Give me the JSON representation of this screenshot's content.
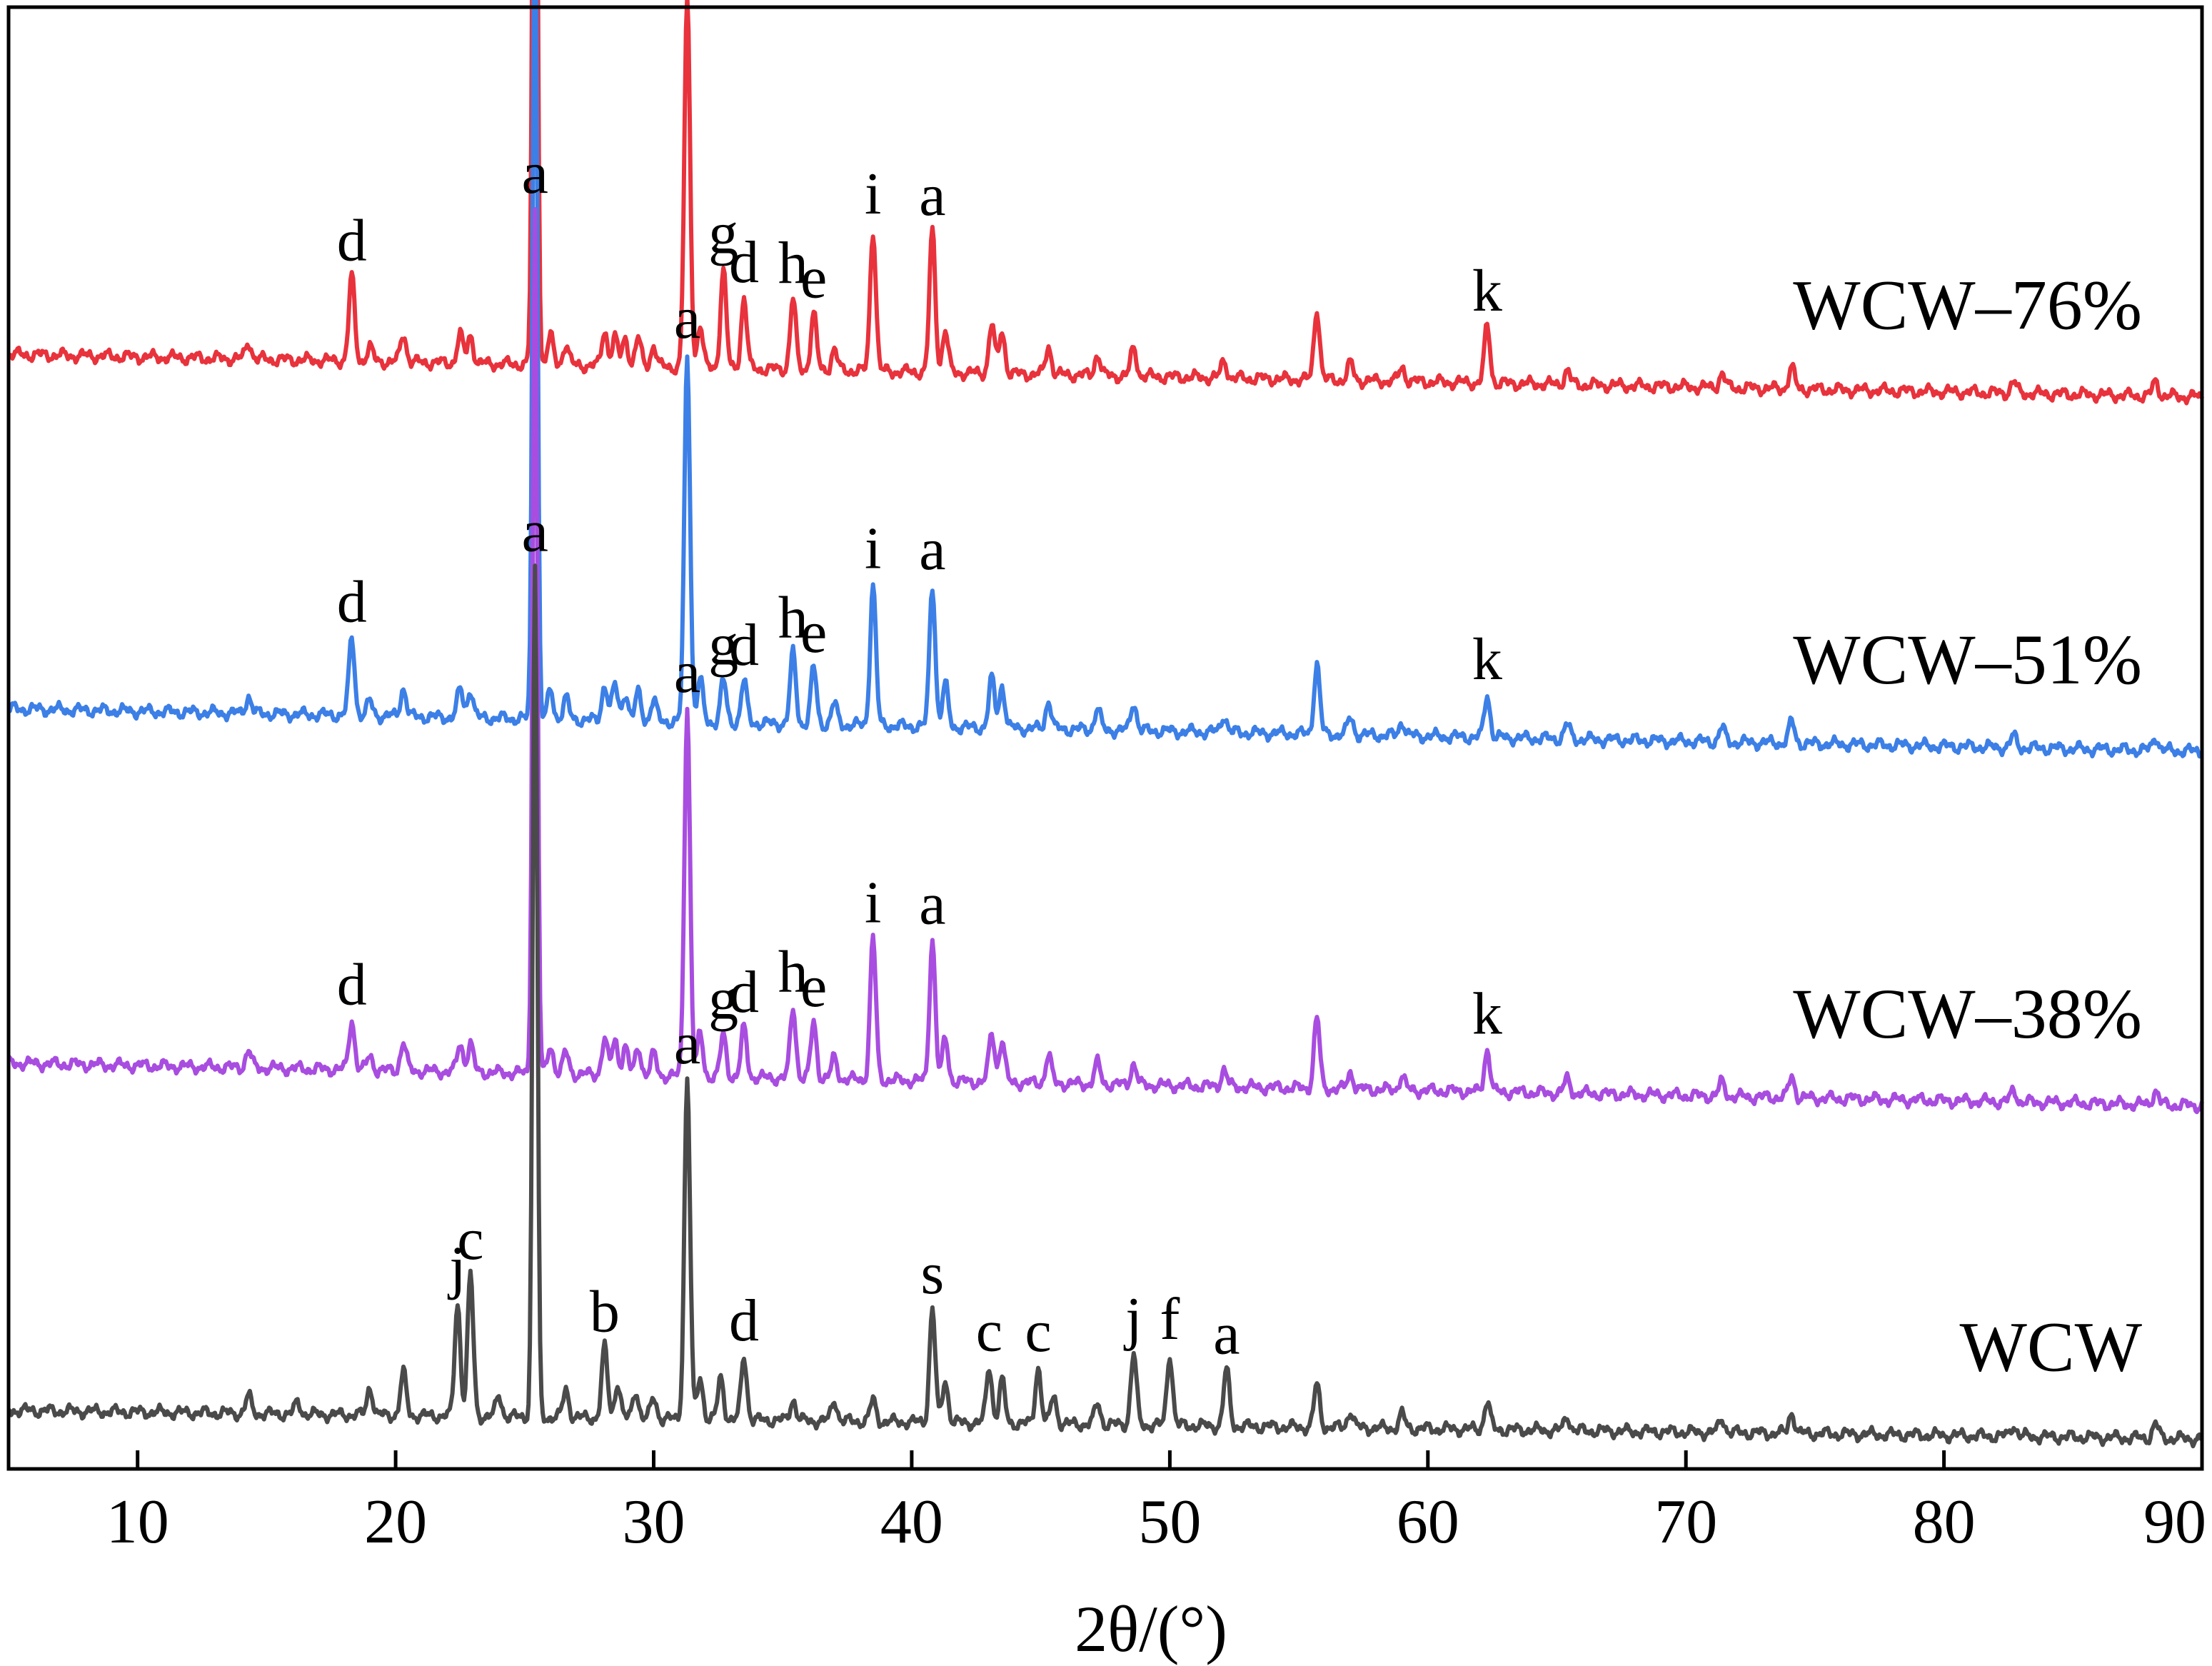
{
  "chart_data": {
    "type": "line",
    "title": "",
    "xlabel": "2θ/(°)",
    "ylabel": "",
    "xlim": [
      5,
      90
    ],
    "x_ticks": [
      10,
      20,
      30,
      40,
      50,
      60,
      70,
      80,
      90
    ],
    "y_ticks": [],
    "grid": false,
    "legend": "none",
    "series": [
      {
        "name": "WCW–76%",
        "color": "#e8323c",
        "baseline_start": 0.745,
        "baseline_end": 0.715,
        "peaks": [
          {
            "x": 14.3,
            "h": 0.012
          },
          {
            "x": 18.3,
            "h": 0.06,
            "label": "d"
          },
          {
            "x": 19.0,
            "h": 0.01
          },
          {
            "x": 20.3,
            "h": 0.02
          },
          {
            "x": 22.5,
            "h": 0.02
          },
          {
            "x": 22.9,
            "h": 0.02
          },
          {
            "x": 25.4,
            "h": 0.61,
            "label": "a"
          },
          {
            "x": 26.0,
            "h": 0.02
          },
          {
            "x": 26.6,
            "h": 0.015
          },
          {
            "x": 28.1,
            "h": 0.025
          },
          {
            "x": 28.5,
            "h": 0.02
          },
          {
            "x": 28.9,
            "h": 0.02
          },
          {
            "x": 29.4,
            "h": 0.02
          },
          {
            "x": 30.0,
            "h": 0.015
          },
          {
            "x": 31.3,
            "h": 0.26,
            "label": "a"
          },
          {
            "x": 31.8,
            "h": 0.03
          },
          {
            "x": 32.7,
            "h": 0.07,
            "label": "g"
          },
          {
            "x": 33.5,
            "h": 0.05,
            "label": "d"
          },
          {
            "x": 35.4,
            "h": 0.05,
            "label": "h"
          },
          {
            "x": 36.2,
            "h": 0.04,
            "label": "e"
          },
          {
            "x": 37.0,
            "h": 0.015
          },
          {
            "x": 38.5,
            "h": 0.1,
            "label": "i"
          },
          {
            "x": 40.8,
            "h": 0.1,
            "label": "a"
          },
          {
            "x": 41.3,
            "h": 0.03
          },
          {
            "x": 43.1,
            "h": 0.035
          },
          {
            "x": 43.5,
            "h": 0.03
          },
          {
            "x": 45.3,
            "h": 0.02
          },
          {
            "x": 47.2,
            "h": 0.015
          },
          {
            "x": 48.6,
            "h": 0.02
          },
          {
            "x": 52.1,
            "h": 0.012
          },
          {
            "x": 55.7,
            "h": 0.05
          },
          {
            "x": 57.0,
            "h": 0.012
          },
          {
            "x": 59.0,
            "h": 0.01
          },
          {
            "x": 62.3,
            "h": 0.04,
            "label": "k"
          },
          {
            "x": 65.4,
            "h": 0.01
          },
          {
            "x": 71.4,
            "h": 0.01
          },
          {
            "x": 74.1,
            "h": 0.015
          },
          {
            "x": 82.7,
            "h": 0.008
          },
          {
            "x": 88.2,
            "h": 0.01
          }
        ]
      },
      {
        "name": "WCW–51%",
        "color": "#3c7fe6",
        "baseline_start": 0.495,
        "baseline_end": 0.465,
        "peaks": [
          {
            "x": 14.3,
            "h": 0.012
          },
          {
            "x": 18.3,
            "h": 0.055,
            "label": "d"
          },
          {
            "x": 19.0,
            "h": 0.01
          },
          {
            "x": 20.3,
            "h": 0.02
          },
          {
            "x": 22.5,
            "h": 0.02
          },
          {
            "x": 22.9,
            "h": 0.02
          },
          {
            "x": 25.4,
            "h": 0.61,
            "label": "a"
          },
          {
            "x": 26.0,
            "h": 0.02
          },
          {
            "x": 26.6,
            "h": 0.015
          },
          {
            "x": 28.1,
            "h": 0.025
          },
          {
            "x": 28.5,
            "h": 0.025
          },
          {
            "x": 28.9,
            "h": 0.02
          },
          {
            "x": 29.4,
            "h": 0.02
          },
          {
            "x": 30.0,
            "h": 0.015
          },
          {
            "x": 31.3,
            "h": 0.26,
            "label": "a"
          },
          {
            "x": 31.8,
            "h": 0.03
          },
          {
            "x": 32.7,
            "h": 0.03,
            "label": "g"
          },
          {
            "x": 33.5,
            "h": 0.03,
            "label": "d"
          },
          {
            "x": 35.4,
            "h": 0.05,
            "label": "h"
          },
          {
            "x": 36.2,
            "h": 0.04,
            "label": "e"
          },
          {
            "x": 37.0,
            "h": 0.015
          },
          {
            "x": 38.5,
            "h": 0.1,
            "label": "i"
          },
          {
            "x": 40.8,
            "h": 0.1,
            "label": "a"
          },
          {
            "x": 41.3,
            "h": 0.03
          },
          {
            "x": 43.1,
            "h": 0.035
          },
          {
            "x": 43.5,
            "h": 0.03
          },
          {
            "x": 45.3,
            "h": 0.02
          },
          {
            "x": 47.2,
            "h": 0.015
          },
          {
            "x": 48.6,
            "h": 0.02
          },
          {
            "x": 52.1,
            "h": 0.012
          },
          {
            "x": 55.7,
            "h": 0.05
          },
          {
            "x": 57.0,
            "h": 0.012
          },
          {
            "x": 59.0,
            "h": 0.01
          },
          {
            "x": 62.3,
            "h": 0.03,
            "label": "k"
          },
          {
            "x": 65.4,
            "h": 0.01
          },
          {
            "x": 71.4,
            "h": 0.01
          },
          {
            "x": 74.1,
            "h": 0.015
          },
          {
            "x": 82.7,
            "h": 0.008
          },
          {
            "x": 88.2,
            "h": 0.01
          }
        ]
      },
      {
        "name": "WCW–38%",
        "color": "#a84de0",
        "baseline_start": 0.245,
        "baseline_end": 0.215,
        "peaks": [
          {
            "x": 14.3,
            "h": 0.012
          },
          {
            "x": 18.3,
            "h": 0.035,
            "label": "d"
          },
          {
            "x": 19.0,
            "h": 0.01
          },
          {
            "x": 20.3,
            "h": 0.02
          },
          {
            "x": 22.5,
            "h": 0.02
          },
          {
            "x": 22.9,
            "h": 0.02
          },
          {
            "x": 25.4,
            "h": 0.61,
            "label": "a"
          },
          {
            "x": 26.0,
            "h": 0.02
          },
          {
            "x": 26.6,
            "h": 0.015
          },
          {
            "x": 28.1,
            "h": 0.025
          },
          {
            "x": 28.5,
            "h": 0.025
          },
          {
            "x": 28.9,
            "h": 0.02
          },
          {
            "x": 29.4,
            "h": 0.02
          },
          {
            "x": 30.0,
            "h": 0.015
          },
          {
            "x": 31.3,
            "h": 0.26,
            "label": "a"
          },
          {
            "x": 31.8,
            "h": 0.03
          },
          {
            "x": 32.7,
            "h": 0.03,
            "label": "g"
          },
          {
            "x": 33.5,
            "h": 0.035,
            "label": "d"
          },
          {
            "x": 35.4,
            "h": 0.05,
            "label": "h"
          },
          {
            "x": 36.2,
            "h": 0.04,
            "label": "e"
          },
          {
            "x": 37.0,
            "h": 0.015
          },
          {
            "x": 38.5,
            "h": 0.1,
            "label": "i"
          },
          {
            "x": 40.8,
            "h": 0.1,
            "label": "a"
          },
          {
            "x": 41.3,
            "h": 0.03
          },
          {
            "x": 43.1,
            "h": 0.035
          },
          {
            "x": 43.5,
            "h": 0.03
          },
          {
            "x": 45.3,
            "h": 0.02
          },
          {
            "x": 47.2,
            "h": 0.015
          },
          {
            "x": 48.6,
            "h": 0.015
          },
          {
            "x": 52.1,
            "h": 0.012
          },
          {
            "x": 55.7,
            "h": 0.05
          },
          {
            "x": 57.0,
            "h": 0.012
          },
          {
            "x": 59.0,
            "h": 0.01
          },
          {
            "x": 62.3,
            "h": 0.03,
            "label": "k"
          },
          {
            "x": 65.4,
            "h": 0.01
          },
          {
            "x": 71.4,
            "h": 0.01
          },
          {
            "x": 74.1,
            "h": 0.015
          },
          {
            "x": 82.7,
            "h": 0.008
          },
          {
            "x": 88.2,
            "h": 0.01
          }
        ]
      },
      {
        "name": "WCW",
        "color": "#4a4a4a",
        "baseline_start": 0.0,
        "baseline_end": -0.02,
        "peaks": [
          {
            "x": 14.3,
            "h": 0.012
          },
          {
            "x": 16.2,
            "h": 0.008
          },
          {
            "x": 19.0,
            "h": 0.02
          },
          {
            "x": 20.3,
            "h": 0.03
          },
          {
            "x": 22.4,
            "h": 0.08,
            "label": "j"
          },
          {
            "x": 22.9,
            "h": 0.1,
            "label": "c"
          },
          {
            "x": 24.0,
            "h": 0.015
          },
          {
            "x": 25.4,
            "h": 0.6,
            "label": "a"
          },
          {
            "x": 26.6,
            "h": 0.02
          },
          {
            "x": 28.1,
            "h": 0.05,
            "label": "b"
          },
          {
            "x": 28.6,
            "h": 0.025
          },
          {
            "x": 29.3,
            "h": 0.02
          },
          {
            "x": 30.0,
            "h": 0.015
          },
          {
            "x": 31.3,
            "h": 0.24,
            "label": "a"
          },
          {
            "x": 31.8,
            "h": 0.03
          },
          {
            "x": 32.6,
            "h": 0.03
          },
          {
            "x": 33.5,
            "h": 0.045,
            "label": "d"
          },
          {
            "x": 35.4,
            "h": 0.015
          },
          {
            "x": 37.0,
            "h": 0.015
          },
          {
            "x": 38.5,
            "h": 0.015
          },
          {
            "x": 40.8,
            "h": 0.08,
            "label": "s"
          },
          {
            "x": 41.3,
            "h": 0.03
          },
          {
            "x": 43.0,
            "h": 0.04,
            "label": "c"
          },
          {
            "x": 43.5,
            "h": 0.03
          },
          {
            "x": 44.9,
            "h": 0.04,
            "label": "c"
          },
          {
            "x": 45.5,
            "h": 0.02
          },
          {
            "x": 47.2,
            "h": 0.015
          },
          {
            "x": 48.6,
            "h": 0.05,
            "label": "j"
          },
          {
            "x": 50.0,
            "h": 0.05,
            "label": "f"
          },
          {
            "x": 52.2,
            "h": 0.04,
            "label": "a"
          },
          {
            "x": 55.7,
            "h": 0.03
          },
          {
            "x": 57.0,
            "h": 0.012
          },
          {
            "x": 59.0,
            "h": 0.01
          },
          {
            "x": 62.3,
            "h": 0.02
          },
          {
            "x": 65.4,
            "h": 0.01
          },
          {
            "x": 71.4,
            "h": 0.01
          },
          {
            "x": 74.1,
            "h": 0.015
          },
          {
            "x": 82.7,
            "h": 0.008
          },
          {
            "x": 88.2,
            "h": 0.01
          }
        ]
      }
    ]
  }
}
